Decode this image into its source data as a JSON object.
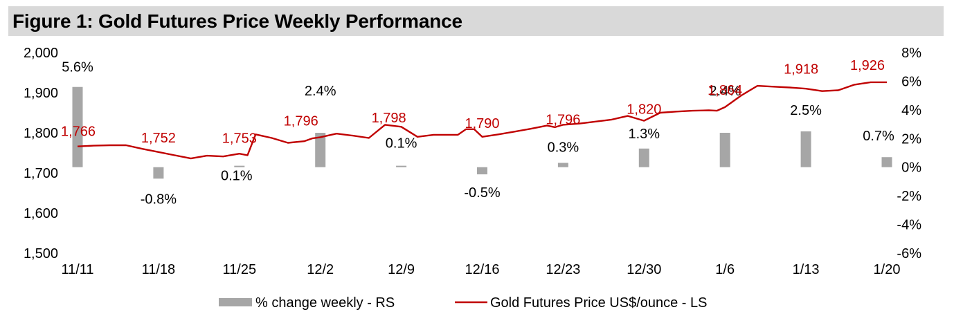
{
  "title": "Figure 1: Gold Futures Price Weekly Performance",
  "colors": {
    "price_line": "#c00000",
    "bars": "#a6a6a6",
    "title_bg": "#d9d9d9"
  },
  "chart_data": {
    "type": "bar+line",
    "title": "Figure 1: Gold Futures Price Weekly Performance",
    "categories": [
      "11/11",
      "11/18",
      "11/25",
      "12/2",
      "12/9",
      "12/16",
      "12/23",
      "12/30",
      "1/6",
      "1/13",
      "1/20"
    ],
    "left_axis": {
      "ylim": [
        1500,
        2000
      ],
      "ticks": [
        "1,500",
        "1,600",
        "1,700",
        "1,800",
        "1,900",
        "2,000"
      ],
      "tick_values": [
        1500,
        1600,
        1700,
        1800,
        1900,
        2000
      ]
    },
    "right_axis": {
      "ylim": [
        -6,
        8
      ],
      "ticks": [
        "-6%",
        "-4%",
        "-2%",
        "0%",
        "2%",
        "4%",
        "6%",
        "8%"
      ],
      "tick_values": [
        -6,
        -4,
        -2,
        0,
        2,
        4,
        6,
        8
      ]
    },
    "bar_series": {
      "name": "% change weekly - RS",
      "values": [
        5.6,
        -0.8,
        0.1,
        2.4,
        0.1,
        -0.5,
        0.3,
        1.3,
        2.4,
        2.5,
        0.7
      ],
      "labels": [
        "5.6%",
        "-0.8%",
        "0.1%",
        "2.4%",
        "0.1%",
        "-0.5%",
        "0.3%",
        "1.3%",
        "2.4%",
        "2.5%",
        "0.7%"
      ]
    },
    "line_series": {
      "name": "Gold Futures Price US$/ounce - LS",
      "x": [
        0,
        0.2,
        0.4,
        0.6,
        0.8,
        1.0,
        1.2,
        1.4,
        1.6,
        1.8,
        2.0,
        2.1,
        2.2,
        2.4,
        2.6,
        2.8,
        2.9,
        3.0,
        3.2,
        3.4,
        3.6,
        3.8,
        4.0,
        4.2,
        4.4,
        4.6,
        4.7,
        4.8,
        4.9,
        5.0,
        5.2,
        5.4,
        5.6,
        5.8,
        5.9,
        6.0,
        6.2,
        6.4,
        6.6,
        6.8,
        7.0,
        7.2,
        7.4,
        7.6,
        7.8,
        7.9,
        8.0,
        8.2,
        8.4,
        8.6,
        8.8,
        9.0,
        9.2,
        9.4,
        9.6,
        9.8,
        9.9,
        10.0
      ],
      "values": [
        1766,
        1768,
        1769,
        1769,
        1760,
        1752,
        1744,
        1736,
        1743,
        1741,
        1748,
        1744,
        1796,
        1787,
        1775,
        1779,
        1786,
        1789,
        1798,
        1793,
        1787,
        1820,
        1815,
        1790,
        1795,
        1795,
        1795,
        1809,
        1809,
        1790,
        1796,
        1803,
        1810,
        1818,
        1814,
        1820,
        1823,
        1828,
        1833,
        1842,
        1830,
        1850,
        1853,
        1855,
        1856,
        1855,
        1864,
        1893,
        1917,
        1915,
        1913,
        1910,
        1904,
        1906,
        1920,
        1926,
        1926,
        1926
      ],
      "labels": [
        {
          "text": "1,766",
          "x": 0,
          "value": 1766
        },
        {
          "text": "1,752",
          "x": 1,
          "value": 1752
        },
        {
          "text": "1,753",
          "x": 2,
          "value": 1753
        },
        {
          "text": "1,796",
          "x": 3,
          "value": 1796
        },
        {
          "text": "1,798",
          "x": 4,
          "value": 1798
        },
        {
          "text": "1,790",
          "x": 5,
          "value": 1790
        },
        {
          "text": "1,796",
          "x": 6,
          "value": 1796
        },
        {
          "text": "1,820",
          "x": 7,
          "value": 1820
        },
        {
          "text": "1,864",
          "x": 8,
          "value": 1864
        },
        {
          "text": "1,918",
          "x": 9,
          "value": 1918
        },
        {
          "text": "1,926",
          "x": 10,
          "value": 1926
        }
      ]
    },
    "legend": [
      {
        "label": "% change weekly - RS",
        "kind": "bar"
      },
      {
        "label": "Gold Futures Price US$/ounce - LS",
        "kind": "line"
      }
    ],
    "legend_position": "bottom"
  }
}
